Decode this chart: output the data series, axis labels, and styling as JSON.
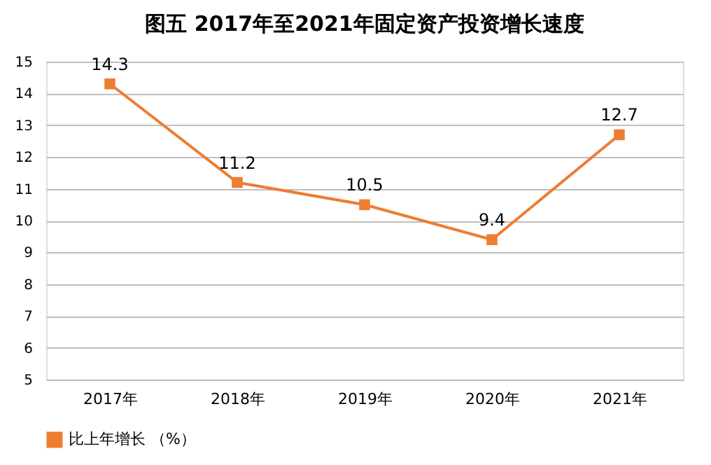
{
  "chart_data": {
    "type": "line",
    "title": "图五  2017年至2021年固定资产投资增长速度",
    "categories": [
      "2017年",
      "2018年",
      "2019年",
      "2020年",
      "2021年"
    ],
    "series": [
      {
        "name": "比上年增长 （%）",
        "color": "#ed7d31",
        "values": [
          14.3,
          11.2,
          10.5,
          9.4,
          12.7
        ]
      }
    ],
    "ylim": [
      5,
      15
    ],
    "yticks": [
      5,
      6,
      7,
      8,
      9,
      10,
      11,
      12,
      13,
      14,
      15
    ],
    "grid": "y",
    "legend": "bottom",
    "marker": "square",
    "line_style": "solid",
    "data_labels": true
  }
}
